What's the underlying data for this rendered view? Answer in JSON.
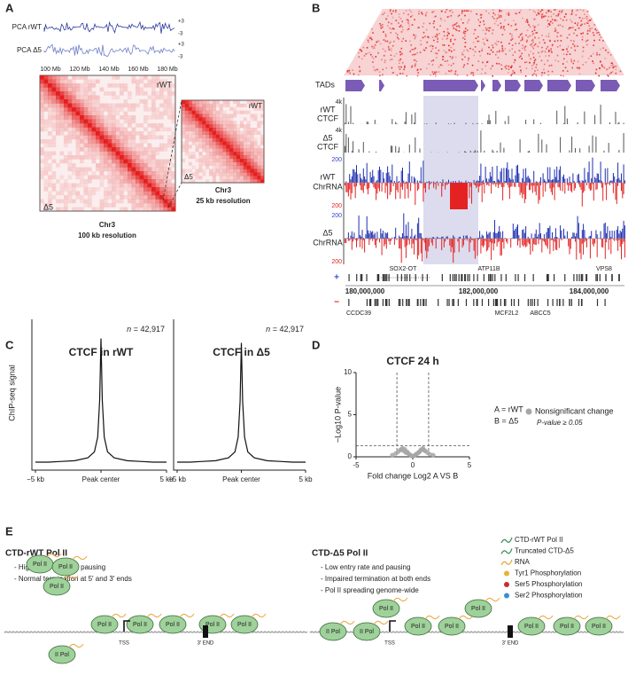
{
  "panel_labels": {
    "a": "A",
    "b": "B",
    "c": "C",
    "d": "D",
    "e": "E"
  },
  "panel_a": {
    "pca": [
      {
        "label": "PCA rWT",
        "scale_top": "+3",
        "scale_bottom": "-3"
      },
      {
        "label": "PCA Δ5",
        "scale_top": "+3",
        "scale_bottom": "-3"
      }
    ],
    "positions": [
      "100 Mb",
      "120 Mb",
      "140 Mb",
      "160 Mb",
      "180 Mb"
    ],
    "map": {
      "top": "rWT",
      "bottom": "Δ5",
      "chrom": "Chr3",
      "resolution": "100 kb resolution"
    },
    "inset": {
      "top": "rWT",
      "bottom": "Δ5",
      "chrom": "Chr3",
      "resolution": "25 kb resolution"
    }
  },
  "panel_b": {
    "tads_label": "TADs",
    "tracks": [
      {
        "lines": [
          "rWT",
          "CTCF"
        ],
        "scale": "4k"
      },
      {
        "lines": [
          "Δ5",
          "CTCF"
        ],
        "scale": "4k"
      },
      {
        "lines": [
          "rWT",
          "ChrRNA"
        ],
        "scale_plus": "200",
        "scale_minus": "200"
      },
      {
        "lines": [
          "Δ5",
          "ChrRNA"
        ],
        "scale_plus": "200",
        "scale_minus": "200"
      }
    ],
    "strands": [
      "+",
      "−"
    ],
    "genes_plus": [
      "SOX2-OT",
      "ATP11B",
      "VPS8"
    ],
    "genes_minus": [
      "CCDC39",
      "MCF2L2",
      "ABCC5"
    ],
    "coordinates": [
      "180,000,000",
      "182,000,000",
      "184,000,000"
    ]
  },
  "chart_data": [
    {
      "type": "line",
      "title": "CTCF in rWT",
      "annotation_var": "n",
      "annotation": "= 42,917",
      "y_label": "ChIP-seq signal",
      "color": "#111111",
      "x": [
        -5,
        -4,
        -3,
        -2,
        -1,
        -0.5,
        -0.25,
        -0.1,
        0,
        0.1,
        0.25,
        0.5,
        1,
        2,
        3,
        4,
        5
      ],
      "values": [
        0.03,
        0.03,
        0.035,
        0.04,
        0.06,
        0.1,
        0.2,
        0.45,
        0.87,
        0.45,
        0.2,
        0.1,
        0.06,
        0.04,
        0.035,
        0.03,
        0.03
      ],
      "xlim": [
        -5,
        5
      ],
      "xticks": [
        {
          "value": -5,
          "label": "−5 kb"
        },
        {
          "value": 0,
          "label": "Peak center"
        },
        {
          "value": 5,
          "label": "5 kb"
        }
      ],
      "ylim": [
        0,
        1
      ]
    },
    {
      "type": "line",
      "title": "CTCF in Δ5",
      "annotation_var": "n",
      "annotation": "= 42,917",
      "color": "#111111",
      "x": [
        -5,
        -4,
        -3,
        -2,
        -1,
        -0.5,
        -0.25,
        -0.1,
        0,
        0.1,
        0.25,
        0.5,
        1,
        2,
        3,
        4,
        5
      ],
      "values": [
        0.03,
        0.03,
        0.035,
        0.04,
        0.06,
        0.1,
        0.2,
        0.44,
        0.84,
        0.44,
        0.2,
        0.1,
        0.06,
        0.04,
        0.035,
        0.03,
        0.03
      ],
      "xlim": [
        -5,
        5
      ],
      "xticks": [
        {
          "value": -5,
          "label": "−5 kb"
        },
        {
          "value": 0,
          "label": "Peak center"
        },
        {
          "value": 5,
          "label": "5 kb"
        }
      ],
      "ylim": [
        0,
        1
      ]
    },
    {
      "type": "scatter",
      "title": "CTCF 24 h",
      "x_label": "Fold change Log2 A VS B",
      "y_label": "−Log10 P-value",
      "name": "Nonsignificant change",
      "legend_note": "P-value ≥ 0.05",
      "notes": [
        "A = rWT",
        "B = Δ5"
      ],
      "color": "#a6a6a6",
      "x": [
        -1.8,
        -1.5,
        -1.3,
        -1.1,
        -1.0,
        -0.9,
        -0.8,
        -0.7,
        -0.6,
        -0.5,
        -0.4,
        -0.3,
        -0.2,
        -0.1,
        0.1,
        0.2,
        0.3,
        0.4,
        0.5,
        0.6,
        0.7,
        0.8,
        0.9,
        1.0,
        1.1,
        1.3,
        1.5,
        1.8
      ],
      "values": [
        0.2,
        0.4,
        0.6,
        0.8,
        0.9,
        1.0,
        0.7,
        0.9,
        0.5,
        0.6,
        0.4,
        0.3,
        0.2,
        0.1,
        0.1,
        0.2,
        0.3,
        0.4,
        0.5,
        0.6,
        0.8,
        0.9,
        1.0,
        0.8,
        0.7,
        0.5,
        0.3,
        0.2
      ],
      "thresholds": {
        "x": [
          -1.4,
          1.4
        ],
        "y": 1.3
      },
      "xlim": [
        -5,
        5
      ],
      "xticks": [
        -5,
        0,
        5
      ],
      "ylim": [
        0,
        10
      ],
      "yticks": [
        0,
        5,
        10
      ]
    }
  ],
  "panel_e": {
    "left": {
      "title": "CTD-rWT Pol II",
      "bullets": [
        "- High entry rate and pausing",
        "- Normal termination at 5′ and 3′ ends"
      ],
      "pols": [
        "Pol II",
        "Pol II",
        "Pol II",
        "II Pol",
        "Pol II",
        "Pol II",
        "Pol II",
        "Pol II",
        "Pol II"
      ],
      "tss": "TSS",
      "end": "3′ END"
    },
    "right": {
      "title": "CTD-Δ5 Pol II",
      "bullets": [
        "- Low entry rate and pausing",
        "- Impaired termination at both ends",
        "- Pol II spreading genome-wide"
      ],
      "pols": [
        "II Pol",
        "II Pol",
        "Pol II",
        "Pol II",
        "Pol II",
        "Pol II",
        "Pol II",
        "Pol II",
        "Pol II"
      ],
      "tss": "TSS",
      "end": "3′ END"
    },
    "legend": [
      "CTD-rWT Pol II",
      "Truncated CTD-Δ5",
      "RNA",
      "Tyr1 Phosphorylation",
      "Ser5 Phosphorylation",
      "Ser2 Phosphorylation"
    ]
  }
}
